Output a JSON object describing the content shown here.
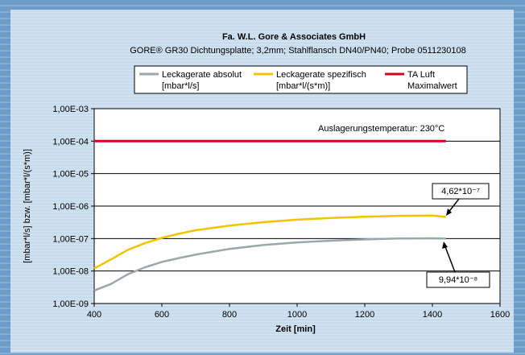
{
  "colors": {
    "absolut": "#9aa7ad",
    "spezifisch": "#f2c400",
    "ta_luft": "#d40020",
    "grid": "#000000",
    "plot_bg": "#ffffff"
  },
  "chart_data": {
    "type": "line",
    "title": "Fa. W.L. Gore & Associates GmbH",
    "subtitle": "GORE® GR30 Dichtungsplatte; 3,2mm; Stahlflansch DN40/PN40; Probe 0511230108",
    "xlabel": "Zeit [min]",
    "ylabel": "[mbar*l/s] bzw. [mbar*l/(s*m)]",
    "xlim": [
      400,
      1600
    ],
    "ylim": [
      1e-09,
      0.001
    ],
    "yscale": "log",
    "grid": true,
    "legend_position": "top",
    "x_ticks": [
      "400",
      "600",
      "800",
      "1000",
      "1200",
      "1400",
      "1600"
    ],
    "y_ticks": [
      "1,00E-09",
      "1,00E-08",
      "1,00E-07",
      "1,00E-06",
      "1,00E-05",
      "1,00E-04",
      "1,00E-03"
    ],
    "legend": [
      {
        "line1": "Leckagerate absolut",
        "line2": "[mbar*l/s]"
      },
      {
        "line1": "Leckagerate spezifisch",
        "line2": "[mbar*l/(s*m)]"
      },
      {
        "line1": "TA Luft",
        "line2": "Maximalwert"
      }
    ],
    "series": [
      {
        "name": "Leckagerate absolut [mbar*l/s]",
        "x": [
          400,
          450,
          500,
          550,
          600,
          650,
          700,
          800,
          900,
          1000,
          1100,
          1200,
          1300,
          1400,
          1440
        ],
        "y": [
          2.5e-09,
          4e-09,
          8e-09,
          1.3e-08,
          1.9e-08,
          2.5e-08,
          3.2e-08,
          4.8e-08,
          6.3e-08,
          7.6e-08,
          8.6e-08,
          9.4e-08,
          1e-07,
          1.02e-07,
          9.94e-08
        ]
      },
      {
        "name": "Leckagerate spezifisch [mbar*l/(s*m)]",
        "x": [
          400,
          450,
          500,
          550,
          600,
          650,
          700,
          800,
          900,
          1000,
          1100,
          1200,
          1300,
          1400,
          1440
        ],
        "y": [
          1.2e-08,
          2.3e-08,
          4.5e-08,
          7.2e-08,
          1.05e-07,
          1.4e-07,
          1.8e-07,
          2.5e-07,
          3.2e-07,
          3.8e-07,
          4.3e-07,
          4.7e-07,
          5e-07,
          5.1e-07,
          4.62e-07
        ]
      },
      {
        "name": "TA Luft Maximalwert",
        "x": [
          400,
          1440
        ],
        "y": [
          0.0001,
          0.0001
        ]
      }
    ],
    "annotations": {
      "temperature": "Auslagerungstemperatur: 230°C",
      "label_spez": "4,62*10⁻⁷",
      "label_abs": "9,94*10⁻⁸"
    }
  }
}
